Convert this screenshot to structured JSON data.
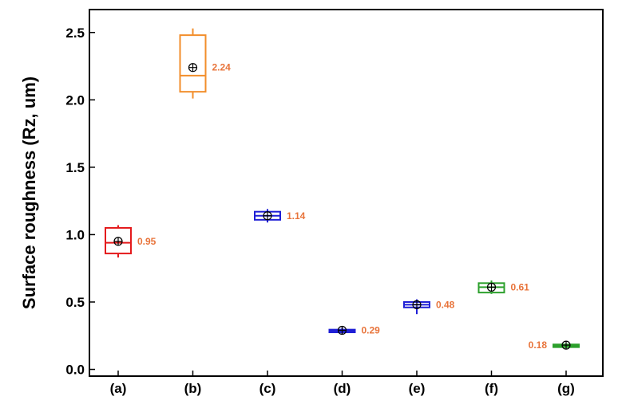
{
  "chart_data": {
    "type": "box",
    "title": "",
    "xlabel": "",
    "ylabel": "Surface roughness (Rz, um)",
    "ylim": [
      -0.05,
      2.67
    ],
    "yticks": [
      "0.0",
      "0.5",
      "1.0",
      "1.5",
      "2.0",
      "2.5"
    ],
    "grid": false,
    "legend": "none",
    "label_color": "#e8743b",
    "categories": [
      "(a)",
      "(b)",
      "(c)",
      "(d)",
      "(e)",
      "(f)",
      "(g)"
    ],
    "boxes": [
      {
        "category": "(a)",
        "color": "#e41a1c",
        "whisker_low": 0.83,
        "q1": 0.86,
        "median": 0.94,
        "q3": 1.05,
        "whisker_high": 1.07,
        "mean": 0.95,
        "mean_label": "0.95",
        "label_side": "right"
      },
      {
        "category": "(b)",
        "color": "#f28e2b",
        "whisker_low": 2.01,
        "q1": 2.06,
        "median": 2.18,
        "q3": 2.48,
        "whisker_high": 2.53,
        "mean": 2.24,
        "mean_label": "2.24",
        "label_side": "right"
      },
      {
        "category": "(c)",
        "color": "#1f1fd6",
        "whisker_low": 1.09,
        "q1": 1.11,
        "median": 1.14,
        "q3": 1.17,
        "whisker_high": 1.19,
        "mean": 1.14,
        "mean_label": "1.14",
        "label_side": "right"
      },
      {
        "category": "(d)",
        "color": "#1f1fd6",
        "whisker_low": 0.26,
        "q1": 0.275,
        "median": 0.285,
        "q3": 0.295,
        "whisker_high": 0.31,
        "mean": 0.29,
        "mean_label": "0.29",
        "label_side": "right"
      },
      {
        "category": "(e)",
        "color": "#1f1fd6",
        "whisker_low": 0.41,
        "q1": 0.46,
        "median": 0.48,
        "q3": 0.5,
        "whisker_high": 0.52,
        "mean": 0.48,
        "mean_label": "0.48",
        "label_side": "right"
      },
      {
        "category": "(f)",
        "color": "#2ca02c",
        "whisker_low": 0.56,
        "q1": 0.57,
        "median": 0.61,
        "q3": 0.64,
        "whisker_high": 0.66,
        "mean": 0.61,
        "mean_label": "0.61",
        "label_side": "right"
      },
      {
        "category": "(g)",
        "color": "#2ca02c",
        "whisker_low": 0.16,
        "q1": 0.165,
        "median": 0.175,
        "q3": 0.185,
        "whisker_high": 0.19,
        "mean": 0.18,
        "mean_label": "0.18",
        "label_side": "left"
      }
    ]
  }
}
